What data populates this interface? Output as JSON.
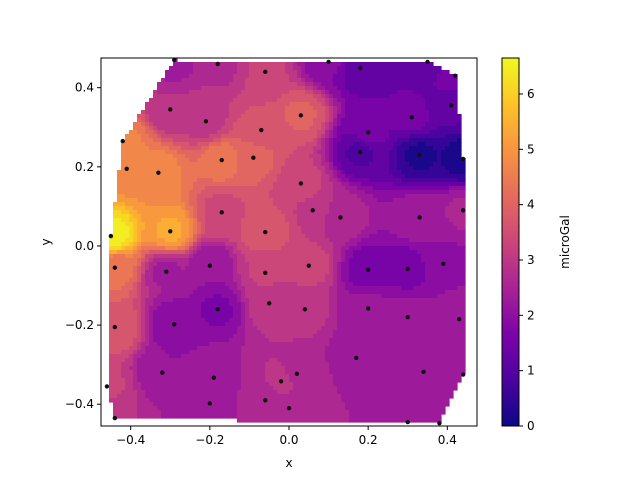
{
  "chart_data": {
    "type": "heatmap",
    "subtype": "filled-contour",
    "title": "",
    "xlabel": "x",
    "ylabel": "y",
    "xlim": [
      -0.475,
      0.475
    ],
    "ylim": [
      -0.455,
      0.475
    ],
    "xticks": [
      -0.4,
      -0.2,
      0.0,
      0.2,
      0.4
    ],
    "xtick_labels": [
      "−0.4",
      "−0.2",
      "0.0",
      "0.2",
      "0.4"
    ],
    "yticks": [
      -0.4,
      -0.2,
      0.0,
      0.2,
      0.4
    ],
    "ytick_labels": [
      "−0.4",
      "−0.2",
      "0.0",
      "0.2",
      "0.4"
    ],
    "colormap": "plasma",
    "colorbar": {
      "label": "microGal",
      "range": [
        0,
        6.65
      ],
      "ticks": [
        0,
        1,
        2,
        3,
        4,
        5,
        6
      ],
      "tick_labels": [
        "0",
        "1",
        "2",
        "3",
        "4",
        "5",
        "6"
      ]
    },
    "levels": [
      0,
      0.35,
      0.7,
      1.05,
      1.4,
      1.75,
      2.1,
      2.45,
      2.8,
      3.15,
      3.5,
      3.85,
      4.2,
      4.55,
      4.9,
      5.25,
      5.6,
      5.95,
      6.3,
      6.65
    ],
    "grid": false,
    "points": [
      {
        "x": -0.29,
        "y": 0.47,
        "v": 2.3
      },
      {
        "x": -0.18,
        "y": 0.46,
        "v": 2.7
      },
      {
        "x": -0.06,
        "y": 0.44,
        "v": 3.2
      },
      {
        "x": 0.1,
        "y": 0.465,
        "v": 1.8
      },
      {
        "x": 0.18,
        "y": 0.45,
        "v": 1.1
      },
      {
        "x": 0.35,
        "y": 0.465,
        "v": 1.2
      },
      {
        "x": 0.42,
        "y": 0.43,
        "v": 1.7
      },
      {
        "x": -0.3,
        "y": 0.345,
        "v": 2.8
      },
      {
        "x": -0.21,
        "y": 0.315,
        "v": 3.0
      },
      {
        "x": -0.07,
        "y": 0.293,
        "v": 3.6
      },
      {
        "x": 0.03,
        "y": 0.33,
        "v": 3.9
      },
      {
        "x": 0.2,
        "y": 0.287,
        "v": 1.5
      },
      {
        "x": 0.31,
        "y": 0.325,
        "v": 1.5
      },
      {
        "x": 0.41,
        "y": 0.355,
        "v": 1.1
      },
      {
        "x": -0.42,
        "y": 0.265,
        "v": 4.6
      },
      {
        "x": -0.17,
        "y": 0.217,
        "v": 4.4
      },
      {
        "x": -0.09,
        "y": 0.223,
        "v": 4.0
      },
      {
        "x": 0.18,
        "y": 0.237,
        "v": 1.0
      },
      {
        "x": 0.33,
        "y": 0.23,
        "v": 0.3
      },
      {
        "x": 0.44,
        "y": 0.22,
        "v": 0.2
      },
      {
        "x": -0.41,
        "y": 0.195,
        "v": 4.8
      },
      {
        "x": -0.33,
        "y": 0.185,
        "v": 4.7
      },
      {
        "x": 0.03,
        "y": 0.158,
        "v": 3.3
      },
      {
        "x": -0.17,
        "y": 0.085,
        "v": 3.4
      },
      {
        "x": 0.06,
        "y": 0.09,
        "v": 3.1
      },
      {
        "x": 0.13,
        "y": 0.072,
        "v": 2.6
      },
      {
        "x": 0.33,
        "y": 0.072,
        "v": 2.4
      },
      {
        "x": 0.44,
        "y": 0.09,
        "v": 2.5
      },
      {
        "x": -0.45,
        "y": 0.025,
        "v": 6.5
      },
      {
        "x": -0.3,
        "y": 0.037,
        "v": 5.3
      },
      {
        "x": -0.06,
        "y": 0.035,
        "v": 3.8
      },
      {
        "x": -0.44,
        "y": -0.055,
        "v": 4.3
      },
      {
        "x": -0.31,
        "y": -0.065,
        "v": 2.4
      },
      {
        "x": -0.2,
        "y": -0.05,
        "v": 2.1
      },
      {
        "x": -0.06,
        "y": -0.068,
        "v": 3.2
      },
      {
        "x": 0.05,
        "y": -0.05,
        "v": 3.3
      },
      {
        "x": 0.2,
        "y": -0.06,
        "v": 1.5
      },
      {
        "x": 0.3,
        "y": -0.058,
        "v": 1.6
      },
      {
        "x": 0.39,
        "y": -0.045,
        "v": 2.0
      },
      {
        "x": -0.05,
        "y": -0.145,
        "v": 3.0
      },
      {
        "x": 0.04,
        "y": -0.16,
        "v": 2.9
      },
      {
        "x": 0.2,
        "y": -0.158,
        "v": 2.2
      },
      {
        "x": -0.29,
        "y": -0.198,
        "v": 1.8
      },
      {
        "x": -0.18,
        "y": -0.16,
        "v": 1.7
      },
      {
        "x": 0.3,
        "y": -0.18,
        "v": 2.2
      },
      {
        "x": 0.43,
        "y": -0.185,
        "v": 2.3
      },
      {
        "x": -0.44,
        "y": -0.205,
        "v": 3.8
      },
      {
        "x": 0.17,
        "y": -0.283,
        "v": 2.2
      },
      {
        "x": -0.32,
        "y": -0.32,
        "v": 2.1
      },
      {
        "x": -0.19,
        "y": -0.333,
        "v": 2.3
      },
      {
        "x": 0.02,
        "y": -0.323,
        "v": 2.7
      },
      {
        "x": 0.34,
        "y": -0.318,
        "v": 2.2
      },
      {
        "x": 0.44,
        "y": -0.325,
        "v": 2.4
      },
      {
        "x": -0.46,
        "y": -0.355,
        "v": 3.2
      },
      {
        "x": -0.02,
        "y": -0.342,
        "v": 2.9
      },
      {
        "x": -0.2,
        "y": -0.398,
        "v": 2.3
      },
      {
        "x": -0.06,
        "y": -0.39,
        "v": 2.6
      },
      {
        "x": 0.0,
        "y": -0.41,
        "v": 2.6
      },
      {
        "x": -0.44,
        "y": -0.435,
        "v": 2.8
      },
      {
        "x": 0.3,
        "y": -0.445,
        "v": 2.3
      },
      {
        "x": 0.38,
        "y": -0.448,
        "v": 2.2
      }
    ]
  }
}
